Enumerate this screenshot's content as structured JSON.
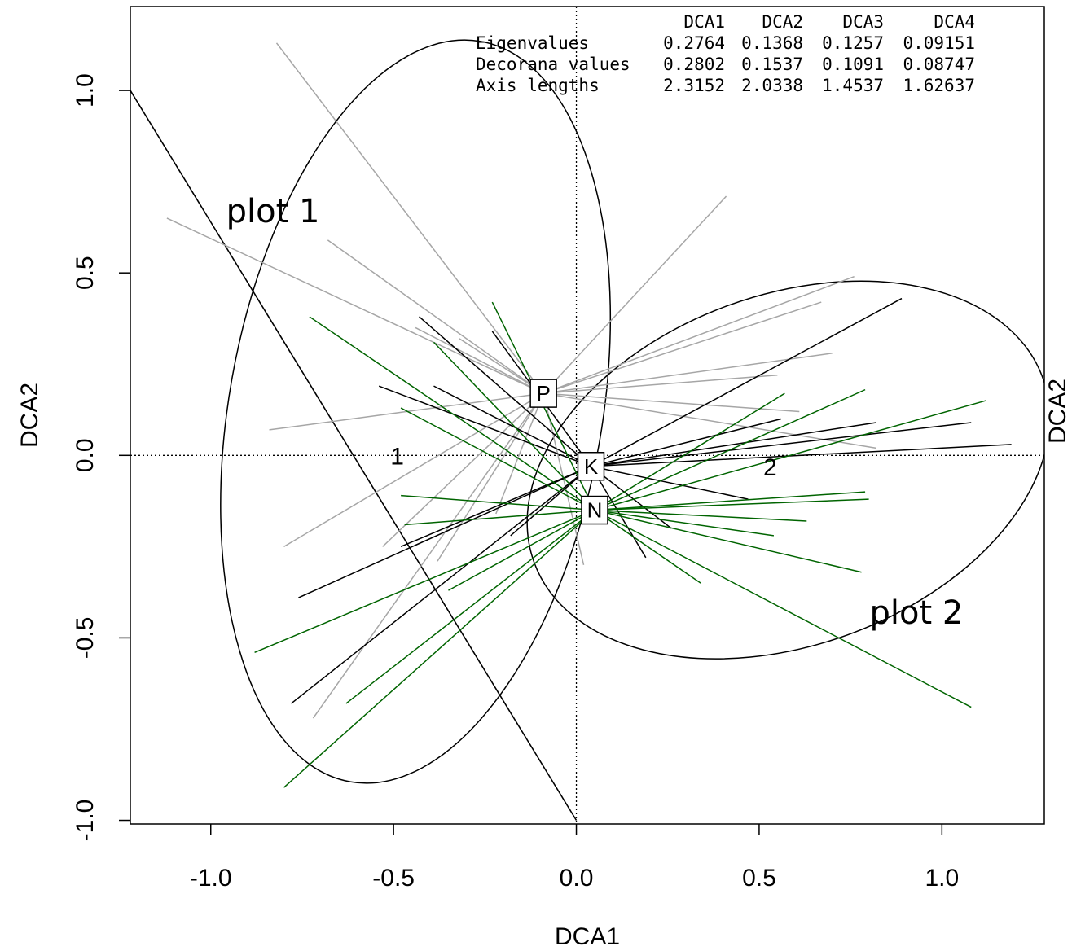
{
  "chart_data": {
    "type": "scatter",
    "title": "",
    "xlabel": "DCA1",
    "ylabel": "DCA2",
    "right_label": "DCA2",
    "xlim": [
      -1.22,
      1.28
    ],
    "ylim": [
      -1.01,
      1.23
    ],
    "xticks": [
      "-1.0",
      "-0.5",
      "0.0",
      "0.5",
      "1.0"
    ],
    "xtick_values": [
      -1.0,
      -0.5,
      0.0,
      0.5,
      1.0
    ],
    "yticks": [
      "-1.0",
      "-0.5",
      "0.0",
      "0.5",
      "1.0"
    ],
    "ytick_values": [
      -1.0,
      -0.5,
      0.0,
      0.5,
      1.0
    ],
    "reference_lines": {
      "x": 0,
      "y": 0,
      "style": "dotted"
    },
    "stats_table": {
      "header": [
        "DCA1",
        "DCA2",
        "DCA3",
        "DCA4"
      ],
      "rows": [
        {
          "label": "Eigenvalues",
          "values": [
            "0.2764",
            "0.1368",
            "0.1257",
            "0.09151"
          ]
        },
        {
          "label": "Decorana values",
          "values": [
            "0.2802",
            "0.1537",
            "0.1091",
            "0.08747"
          ]
        },
        {
          "label": "Axis lengths",
          "values": [
            "2.3152",
            "2.0338",
            "1.4537",
            "1.62637"
          ]
        }
      ]
    },
    "centroids": [
      {
        "label": "P",
        "x": -0.09,
        "y": 0.17
      },
      {
        "label": "K",
        "x": 0.04,
        "y": -0.03
      },
      {
        "label": "N",
        "x": 0.05,
        "y": -0.15
      }
    ],
    "group_labels": [
      {
        "text": "1",
        "x": -0.49,
        "y": 0.0
      },
      {
        "text": "2",
        "x": 0.53,
        "y": -0.03
      }
    ],
    "annotations": [
      {
        "text": "plot 1",
        "x": -0.83,
        "y": 0.67
      },
      {
        "text": "plot 2",
        "x": 0.93,
        "y": -0.43
      }
    ],
    "ellipses": [
      {
        "cx": -0.44,
        "cy": 0.12,
        "rx": 0.51,
        "ry": 1.03,
        "rotate": 10
      },
      {
        "cx": 0.58,
        "cy": -0.04,
        "rx": 0.74,
        "ry": 0.48,
        "rotate": -20
      }
    ],
    "separator_line": {
      "x1": -1.22,
      "y1": 1.0,
      "x2": 0.0,
      "y2": -1.0
    },
    "colors": {
      "gray": "#a6a6a6",
      "black": "#000000",
      "green": "#006400"
    },
    "spider_series": [
      {
        "name": "",
        "color": "gray",
        "center": [
          -0.09,
          0.17
        ],
        "points": [
          [
            -0.82,
            1.13
          ],
          [
            -1.12,
            0.65
          ],
          [
            -0.68,
            0.59
          ],
          [
            -0.84,
            0.07
          ],
          [
            -0.8,
            -0.25
          ],
          [
            -0.72,
            -0.72
          ],
          [
            -0.44,
            0.35
          ],
          [
            -0.32,
            0.32
          ],
          [
            0.41,
            0.71
          ],
          [
            0.76,
            0.49
          ],
          [
            0.67,
            0.42
          ],
          [
            0.7,
            0.28
          ],
          [
            0.55,
            0.22
          ],
          [
            0.61,
            0.12
          ],
          [
            0.82,
            0.02
          ],
          [
            -0.53,
            -0.25
          ],
          [
            -0.38,
            -0.29
          ],
          [
            -0.22,
            -0.16
          ],
          [
            0.02,
            -0.3
          ]
        ]
      },
      {
        "name": "",
        "color": "black",
        "center": [
          0.04,
          -0.03
        ],
        "points": [
          [
            -0.43,
            0.38
          ],
          [
            -0.23,
            0.34
          ],
          [
            -0.54,
            0.19
          ],
          [
            -0.39,
            0.19
          ],
          [
            -0.48,
            -0.25
          ],
          [
            -0.76,
            -0.39
          ],
          [
            -0.78,
            -0.68
          ],
          [
            -0.18,
            -0.22
          ],
          [
            0.89,
            0.43
          ],
          [
            0.56,
            0.1
          ],
          [
            0.82,
            0.09
          ],
          [
            1.08,
            0.09
          ],
          [
            1.19,
            0.03
          ],
          [
            0.47,
            -0.12
          ],
          [
            0.26,
            -0.2
          ],
          [
            0.19,
            -0.28
          ]
        ]
      },
      {
        "name": "",
        "color": "green",
        "center": [
          0.05,
          -0.15
        ],
        "points": [
          [
            -0.73,
            0.38
          ],
          [
            -0.23,
            0.42
          ],
          [
            -0.39,
            0.31
          ],
          [
            -0.48,
            0.13
          ],
          [
            -0.48,
            -0.11
          ],
          [
            -0.47,
            -0.19
          ],
          [
            -0.88,
            -0.54
          ],
          [
            -0.63,
            -0.68
          ],
          [
            -0.8,
            -0.91
          ],
          [
            -0.35,
            -0.37
          ],
          [
            0.57,
            0.17
          ],
          [
            0.79,
            0.18
          ],
          [
            1.12,
            0.15
          ],
          [
            0.79,
            -0.1
          ],
          [
            0.8,
            -0.12
          ],
          [
            0.63,
            -0.18
          ],
          [
            0.54,
            -0.22
          ],
          [
            0.78,
            -0.32
          ],
          [
            0.34,
            -0.35
          ],
          [
            1.08,
            -0.69
          ]
        ]
      }
    ]
  }
}
